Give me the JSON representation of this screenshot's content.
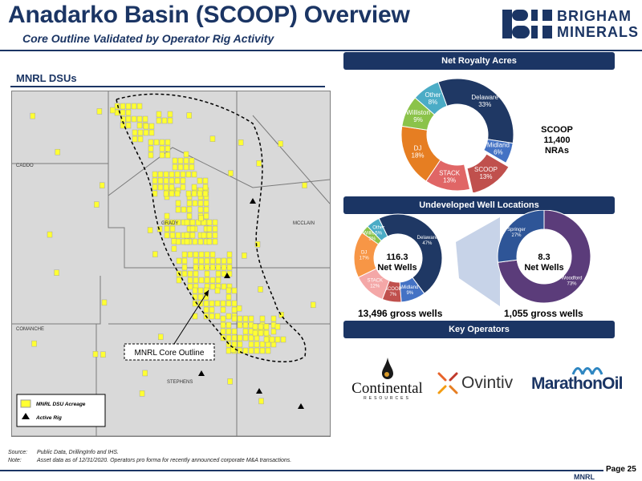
{
  "header": {
    "title": "Anadarko Basin (SCOOP) Overview",
    "subtitle": "Core Outline Validated by Operator Rig Activity",
    "logo_line1": "BRIGHAM",
    "logo_line2": "MINERALS"
  },
  "map": {
    "heading": "MNRL DSUs",
    "county_labels": [
      "CADDO",
      "GRADY",
      "MCCLAIN",
      "COMANCHE",
      "STEPHENS"
    ],
    "callout": "MNRL Core Outline",
    "legend": [
      {
        "label": "MNRL DSU Acreage",
        "symbol": "yellow-square-icon"
      },
      {
        "label": "Active Rig",
        "symbol": "triangle-icon"
      }
    ],
    "colors": {
      "acreage": "#ffff33",
      "background": "#d9d9d9",
      "outline": "#000000"
    }
  },
  "net_royalty": {
    "heading": "Net Royalty Acres",
    "highlight_label": "SCOOP",
    "highlight_value": "11,400",
    "highlight_unit": "NRAs"
  },
  "undeveloped": {
    "heading": "Undeveloped Well Locations",
    "left_center_value": "116.3",
    "left_center_label": "Net Wells",
    "right_center_value": "8.3",
    "right_center_label": "Net Wells",
    "left_gross": "13,496 gross wells",
    "right_gross": "1,055 gross wells"
  },
  "operators": {
    "heading": "Key Operators",
    "names": [
      "Continental",
      "RESOURCES",
      "Ovintiv",
      "MarathonOil"
    ]
  },
  "footer": {
    "source_key": "Source:",
    "source_text": "Public Data, DrillingInfo and IHS.",
    "note_key": "Note:",
    "note_text": "Asset data as of 12/31/2020. Operators pro forma for recently announced corporate M&A transactions.",
    "page": "Page 25",
    "ticker": "MNRL"
  },
  "chart_data": [
    {
      "type": "pie",
      "title": "Net Royalty Acres",
      "categories": [
        "Delaware",
        "Midland",
        "SCOOP",
        "STACK",
        "DJ",
        "Williston",
        "Other"
      ],
      "values": [
        33,
        6,
        13,
        13,
        18,
        9,
        8
      ],
      "labels": [
        "33%",
        "6%",
        "13%",
        "13%",
        "18%",
        "9%",
        "8%"
      ],
      "colors": [
        "#1f3864",
        "#4472c4",
        "#c0504d",
        "#e06666",
        "#e67e22",
        "#8bc34a",
        "#4bacc6"
      ]
    },
    {
      "type": "pie",
      "title": "Undeveloped Well Locations",
      "categories": [
        "Delaware",
        "Midland",
        "SCOOP",
        "STACK",
        "DJ",
        "Williston",
        "Other"
      ],
      "values": [
        47,
        9,
        7,
        12,
        17,
        3,
        5
      ],
      "labels": [
        "47%",
        "9%",
        "7%",
        "12%",
        "17%",
        "3%",
        "5%"
      ],
      "colors": [
        "#1f3864",
        "#4472c4",
        "#c0504d",
        "#f4a7a7",
        "#f79646",
        "#8bc34a",
        "#4bacc6"
      ]
    },
    {
      "type": "pie",
      "title": "SCOOP",
      "categories": [
        "Woodford",
        "Springer"
      ],
      "values": [
        73,
        27
      ],
      "labels": [
        "73%",
        "27%"
      ],
      "colors": [
        "#5b3c7a",
        "#2e5597"
      ]
    }
  ]
}
